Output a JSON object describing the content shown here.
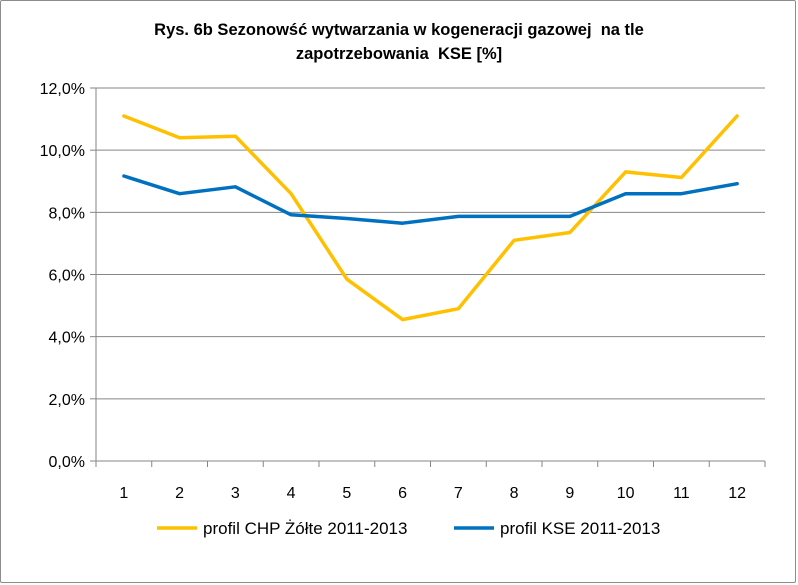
{
  "chart_data": {
    "type": "line",
    "title_line1": "Rys. 6b Sezonowść wytwarzania w kogeneracji gazowej  na tle",
    "title_line2": "zapotrzebowania  KSE [%]",
    "xlabel": "",
    "ylabel": "",
    "categories": [
      "1",
      "2",
      "3",
      "4",
      "5",
      "6",
      "7",
      "8",
      "9",
      "10",
      "11",
      "12"
    ],
    "ylim": [
      0,
      12
    ],
    "ytick_step": 2,
    "ytick_labels": [
      "0,0%",
      "2,0%",
      "4,0%",
      "6,0%",
      "8,0%",
      "10,0%",
      "12,0%"
    ],
    "grid": "horizontal",
    "legend_position": "bottom",
    "series": [
      {
        "name": "profil CHP Żółte 2011-2013",
        "color": "#ffc000",
        "values": [
          11.1,
          10.4,
          10.45,
          8.6,
          5.85,
          4.55,
          4.9,
          7.1,
          7.35,
          9.3,
          9.12,
          11.1
        ]
      },
      {
        "name": "profil KSE 2011-2013",
        "color": "#0070c0",
        "values": [
          9.17,
          8.6,
          8.82,
          7.92,
          7.8,
          7.65,
          7.87,
          7.87,
          7.87,
          8.6,
          8.6,
          8.92
        ]
      }
    ]
  }
}
